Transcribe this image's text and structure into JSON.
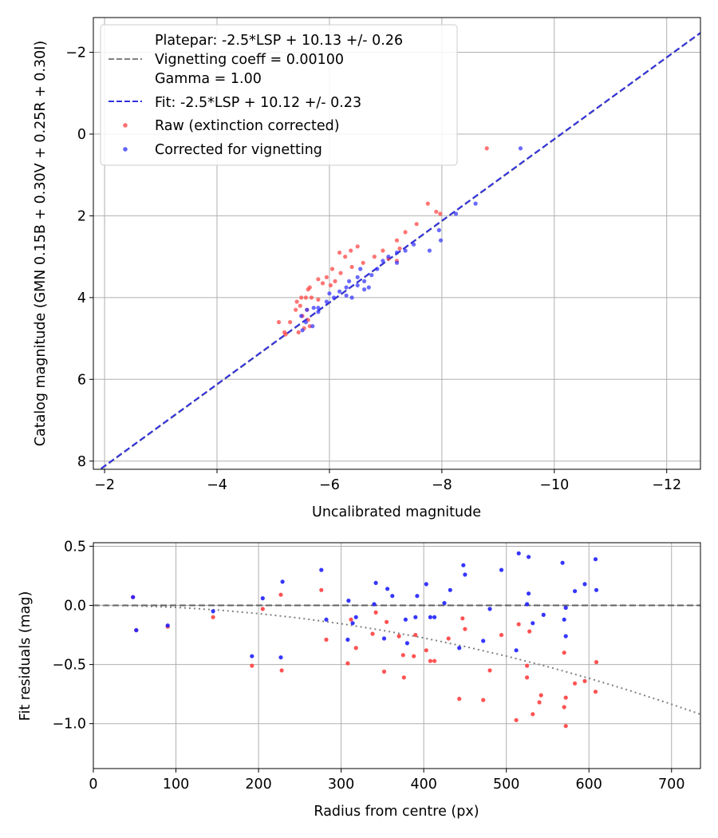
{
  "chart_data": [
    {
      "type": "scatter",
      "xlabel": "Uncalibrated magnitude",
      "ylabel": "Catalog magnitude (GMN 0.15B + 0.30V + 0.25R + 0.30I)",
      "xlim": [
        -1.8,
        -12.6
      ],
      "ylim": [
        8.2,
        -2.85
      ],
      "xticks": [
        -2,
        -4,
        -6,
        -8,
        -10,
        -12
      ],
      "xtick_labels": [
        "−2",
        "−4",
        "−6",
        "−8",
        "−10",
        "−12"
      ],
      "yticks": [
        -2,
        0,
        2,
        4,
        6,
        8
      ],
      "ytick_labels": [
        "−2",
        "0",
        "2",
        "4",
        "6",
        "8"
      ],
      "grid": true,
      "legend_position": "top-left",
      "legend": {
        "platepar_lines": [
          "Platepar: -2.5*LSP + 10.13 +/- 0.26",
          "Vignetting coeff = 0.00100",
          "Gamma = 1.00"
        ],
        "fit_label": "Fit: -2.5*LSP + 10.12 +/- 0.23",
        "raw_label": "Raw (extinction corrected)",
        "corrected_label": "Corrected for vignetting"
      },
      "lines": [
        {
          "name": "Platepar",
          "color": "#808080",
          "dash": "dashed",
          "x": [
            -1.8,
            -12.6
          ],
          "y": [
            8.33,
            -2.47
          ]
        },
        {
          "name": "Fit",
          "color": "#3030e0",
          "dash": "dashed",
          "x": [
            -1.8,
            -12.6
          ],
          "y": [
            8.32,
            -2.48
          ]
        }
      ],
      "series": [
        {
          "name": "Raw (extinction corrected)",
          "color": "#ff4040",
          "points": [
            [
              -8.8,
              0.35
            ],
            [
              -7.75,
              1.7
            ],
            [
              -7.9,
              1.9
            ],
            [
              -7.97,
              1.95
            ],
            [
              -7.55,
              2.2
            ],
            [
              -7.35,
              2.4
            ],
            [
              -7.2,
              2.6
            ],
            [
              -7.25,
              2.8
            ],
            [
              -6.95,
              2.85
            ],
            [
              -7.05,
              3.05
            ],
            [
              -7.2,
              3.1
            ],
            [
              -6.8,
              3.0
            ],
            [
              -6.5,
              2.75
            ],
            [
              -6.38,
              2.85
            ],
            [
              -6.28,
              3.0
            ],
            [
              -6.18,
              2.9
            ],
            [
              -6.6,
              3.15
            ],
            [
              -6.4,
              3.25
            ],
            [
              -6.2,
              3.4
            ],
            [
              -6.05,
              3.3
            ],
            [
              -5.95,
              3.5
            ],
            [
              -6.1,
              3.6
            ],
            [
              -5.8,
              3.55
            ],
            [
              -5.88,
              3.65
            ],
            [
              -6.02,
              3.7
            ],
            [
              -5.65,
              3.75
            ],
            [
              -5.62,
              3.8
            ],
            [
              -5.5,
              4.0
            ],
            [
              -5.42,
              4.1
            ],
            [
              -5.58,
              4.0
            ],
            [
              -5.68,
              4.0
            ],
            [
              -5.8,
              4.05
            ],
            [
              -5.48,
              4.2
            ],
            [
              -5.4,
              4.3
            ],
            [
              -5.6,
              4.3
            ],
            [
              -5.52,
              4.45
            ],
            [
              -5.62,
              4.55
            ],
            [
              -5.3,
              4.6
            ],
            [
              -5.1,
              4.6
            ],
            [
              -5.2,
              4.85
            ],
            [
              -5.55,
              4.75
            ],
            [
              -5.65,
              4.7
            ],
            [
              -5.45,
              4.85
            ],
            [
              -5.22,
              4.9
            ]
          ]
        },
        {
          "name": "Corrected for vignetting",
          "color": "#3030ff",
          "points": [
            [
              -9.4,
              0.35
            ],
            [
              -8.6,
              1.7
            ],
            [
              -8.25,
              1.95
            ],
            [
              -7.95,
              2.35
            ],
            [
              -7.98,
              2.6
            ],
            [
              -7.78,
              2.85
            ],
            [
              -7.5,
              2.7
            ],
            [
              -7.35,
              2.85
            ],
            [
              -7.2,
              2.9
            ],
            [
              -7.05,
              3.0
            ],
            [
              -6.95,
              3.1
            ],
            [
              -7.2,
              3.15
            ],
            [
              -6.85,
              3.3
            ],
            [
              -6.75,
              3.45
            ],
            [
              -6.55,
              3.3
            ],
            [
              -6.5,
              3.5
            ],
            [
              -6.62,
              3.6
            ],
            [
              -6.35,
              3.6
            ],
            [
              -6.5,
              3.7
            ],
            [
              -6.7,
              3.75
            ],
            [
              -6.62,
              3.8
            ],
            [
              -6.3,
              3.75
            ],
            [
              -6.18,
              3.85
            ],
            [
              -6.0,
              3.9
            ],
            [
              -6.08,
              4.0
            ],
            [
              -6.4,
              4.0
            ],
            [
              -6.3,
              3.95
            ],
            [
              -5.95,
              4.1
            ],
            [
              -5.8,
              4.25
            ],
            [
              -5.72,
              4.25
            ],
            [
              -5.6,
              4.3
            ],
            [
              -5.8,
              4.35
            ],
            [
              -5.5,
              4.45
            ],
            [
              -5.58,
              4.6
            ],
            [
              -5.7,
              4.7
            ],
            [
              -5.52,
              4.8
            ]
          ]
        }
      ]
    },
    {
      "type": "scatter",
      "xlabel": "Radius from centre (px)",
      "ylabel": "Fit residuals (mag)",
      "xlim": [
        0,
        735
      ],
      "ylim": [
        -1.38,
        0.53
      ],
      "xticks": [
        0,
        100,
        200,
        300,
        400,
        500,
        600,
        700
      ],
      "xtick_labels": [
        "0",
        "100",
        "200",
        "300",
        "400",
        "500",
        "600",
        "700"
      ],
      "yticks": [
        0.5,
        0.0,
        -0.5,
        -1.0
      ],
      "ytick_labels": [
        "0.5",
        "0.0",
        "−0.5",
        "−1.0"
      ],
      "grid": true,
      "lines": [
        {
          "name": "zero line",
          "color": "#606060",
          "dash": "dashed",
          "x": [
            0,
            735
          ],
          "y": [
            0,
            0
          ]
        },
        {
          "name": "vignetting model",
          "color": "#808080",
          "dash": "dotted",
          "x": [
            0,
            50,
            100,
            150,
            200,
            250,
            300,
            350,
            400,
            450,
            500,
            550,
            600,
            650,
            700,
            735
          ],
          "y": [
            0,
            -0.004,
            -0.017,
            -0.039,
            -0.069,
            -0.108,
            -0.155,
            -0.211,
            -0.275,
            -0.348,
            -0.429,
            -0.518,
            -0.616,
            -0.722,
            -0.836,
            -0.921
          ]
        }
      ],
      "series": [
        {
          "name": "Raw",
          "color": "#ff4040",
          "points": [
            [
              48,
              0.07
            ],
            [
              52,
              -0.21
            ],
            [
              90,
              -0.18
            ],
            [
              145,
              -0.1
            ],
            [
              192,
              -0.51
            ],
            [
              205,
              -0.03
            ],
            [
              227,
              0.09
            ],
            [
              228,
              -0.55
            ],
            [
              276,
              0.13
            ],
            [
              282,
              -0.29
            ],
            [
              308,
              -0.49
            ],
            [
              312,
              -0.12
            ],
            [
              318,
              -0.36
            ],
            [
              338,
              -0.24
            ],
            [
              342,
              -0.06
            ],
            [
              352,
              -0.56
            ],
            [
              355,
              -0.14
            ],
            [
              370,
              -0.26
            ],
            [
              375,
              -0.42
            ],
            [
              376,
              -0.61
            ],
            [
              388,
              -0.43
            ],
            [
              390,
              -0.25
            ],
            [
              403,
              -0.38
            ],
            [
              408,
              -0.47
            ],
            [
              413,
              -0.47
            ],
            [
              430,
              -0.28
            ],
            [
              443,
              -0.79
            ],
            [
              447,
              -0.11
            ],
            [
              450,
              -0.2
            ],
            [
              472,
              -0.8
            ],
            [
              480,
              -0.55
            ],
            [
              494,
              -0.25
            ],
            [
              512,
              -0.97
            ],
            [
              515,
              -0.16
            ],
            [
              525,
              -0.61
            ],
            [
              525,
              -0.51
            ],
            [
              528,
              -0.22
            ],
            [
              532,
              -0.92
            ],
            [
              540,
              -0.82
            ],
            [
              542,
              -0.76
            ],
            [
              570,
              -0.86
            ],
            [
              570,
              -0.4
            ],
            [
              572,
              -1.02
            ],
            [
              572,
              -0.78
            ],
            [
              583,
              -0.66
            ],
            [
              595,
              -0.64
            ],
            [
              608,
              -0.73
            ],
            [
              609,
              -0.48
            ]
          ]
        },
        {
          "name": "Corrected",
          "color": "#2020ff",
          "points": [
            [
              48,
              0.07
            ],
            [
              52,
              -0.21
            ],
            [
              90,
              -0.17
            ],
            [
              145,
              -0.05
            ],
            [
              192,
              -0.43
            ],
            [
              205,
              0.06
            ],
            [
              227,
              -0.44
            ],
            [
              229,
              0.2
            ],
            [
              276,
              0.3
            ],
            [
              282,
              -0.12
            ],
            [
              308,
              -0.29
            ],
            [
              309,
              0.04
            ],
            [
              314,
              -0.15
            ],
            [
              318,
              -0.1
            ],
            [
              340,
              0.01
            ],
            [
              342,
              0.19
            ],
            [
              352,
              -0.28
            ],
            [
              356,
              0.14
            ],
            [
              362,
              0.08
            ],
            [
              378,
              -0.12
            ],
            [
              380,
              -0.32
            ],
            [
              390,
              -0.1
            ],
            [
              392,
              0.08
            ],
            [
              403,
              0.18
            ],
            [
              408,
              -0.1
            ],
            [
              413,
              -0.1
            ],
            [
              425,
              0.02
            ],
            [
              432,
              0.13
            ],
            [
              443,
              -0.36
            ],
            [
              448,
              0.34
            ],
            [
              450,
              0.26
            ],
            [
              480,
              -0.03
            ],
            [
              472,
              -0.3
            ],
            [
              494,
              0.3
            ],
            [
              512,
              -0.38
            ],
            [
              515,
              0.44
            ],
            [
              525,
              0.01
            ],
            [
              527,
              0.1
            ],
            [
              527,
              0.41
            ],
            [
              532,
              -0.15
            ],
            [
              545,
              -0.08
            ],
            [
              568,
              0.36
            ],
            [
              570,
              -0.12
            ],
            [
              572,
              -0.02
            ],
            [
              572,
              -0.26
            ],
            [
              583,
              0.12
            ],
            [
              595,
              0.18
            ],
            [
              608,
              0.39
            ],
            [
              609,
              0.13
            ]
          ]
        }
      ]
    }
  ]
}
